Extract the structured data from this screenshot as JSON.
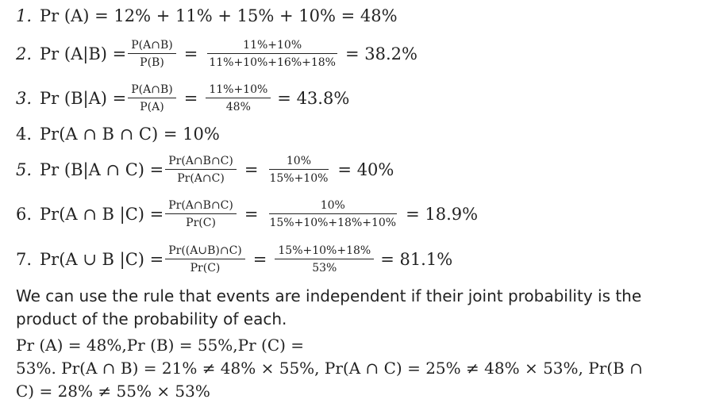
{
  "lines": [
    {
      "num": "1.",
      "lhs": "Pr (A) = 12% + 11% + 15% + 10% = 48%"
    },
    {
      "num": "2.",
      "lhs": "Pr (A|B) =",
      "f1n": "P(A∩B)",
      "f1d": "P(B)",
      "f2n": "11%+10%",
      "f2d": "11%+10%+16%+18%",
      "res": "= 38.2%"
    },
    {
      "num": "3.",
      "lhs": "Pr (B|A) =",
      "f1n": "P(A∩B)",
      "f1d": "P(A)",
      "f2n": "11%+10%",
      "f2d": "48%",
      "res": "= 43.8%"
    },
    {
      "num": "4.",
      "lhs": "Pr(A ∩ B ∩ C) = 10%"
    },
    {
      "num": "5.",
      "lhs": "Pr (B|A ∩ C) =",
      "f1n": "Pr(A∩B∩C)",
      "f1d": "Pr(A∩C)",
      "f2n": "10%",
      "f2d": "15%+10%",
      "res": "= 40%"
    },
    {
      "num": "6.",
      "lhs": "Pr(A ∩ B |C) =",
      "f1n": "Pr(A∩B∩C)",
      "f1d": "Pr(C)",
      "f2n": "10%",
      "f2d": "15%+10%+18%+10%",
      "res": "= 18.9%"
    },
    {
      "num": "7.",
      "lhs": "Pr(A ∪ B |C) =",
      "f1n": "Pr((A∪B)∩C)",
      "f1d": "Pr(C)",
      "f2n": "15%+10%+18%",
      "f2d": "53%",
      "res": "= 81.1%"
    }
  ],
  "paragraph": "We can use the rule that events are independent if their joint probability is the product of the probability of each.",
  "final": {
    "line1": "Pr (A) = 48%,Pr (B) = 55%,Pr (C) =",
    "line2": "53%. Pr(A ∩ B) = 21% ≠ 48% × 55%, Pr(A ∩ C) = 25% ≠ 48% × 53%, Pr(B ∩",
    "line3": "C) = 28% ≠ 55% × 53%"
  }
}
